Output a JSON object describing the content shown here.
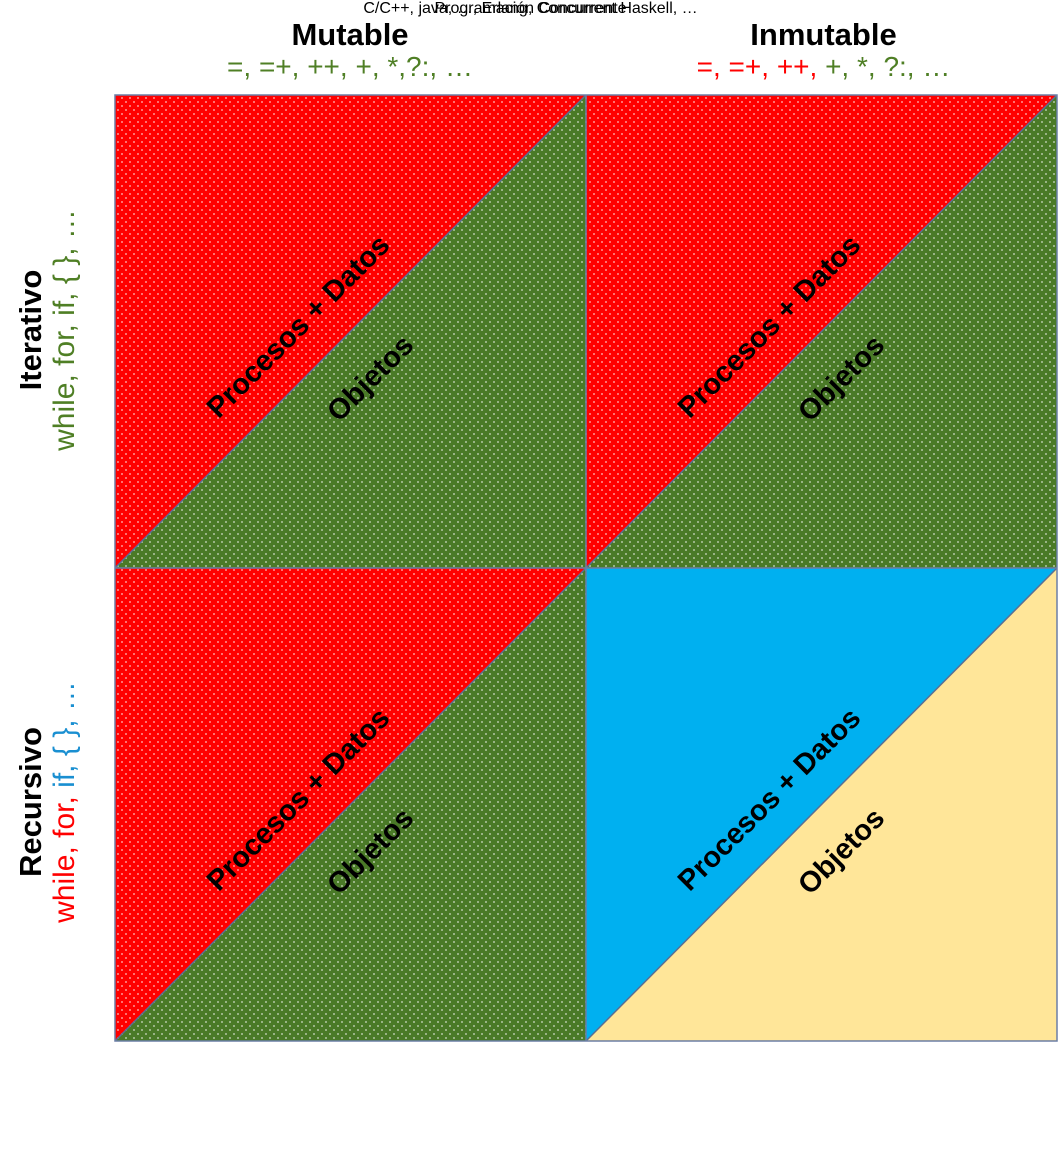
{
  "columns": [
    {
      "title": "Mutable",
      "ops": [
        {
          "text": "=, =+, ++, +, *,?:, …",
          "color": "green"
        }
      ]
    },
    {
      "title": "Inmutable",
      "ops": [
        {
          "text": "=, =+, ++, ",
          "color": "red"
        },
        {
          "text": "+, *, ?:, …",
          "color": "green"
        }
      ]
    }
  ],
  "rows": [
    {
      "title": "Iterativo",
      "ops": [
        {
          "text": "while, for, if, { }, …",
          "color": "green"
        }
      ]
    },
    {
      "title": "Recursivo",
      "ops": [
        {
          "text": "while, for, ",
          "color": "red"
        },
        {
          "text": "if, { }, …",
          "color": "blue"
        }
      ]
    }
  ],
  "quadrants": [
    {
      "upper_label": "Procesos + Datos",
      "lower_label": "Objetos",
      "upper_color": "#ff0000",
      "lower_color": "#4a7a27",
      "dotted": true
    },
    {
      "upper_label": "Procesos + Datos",
      "lower_label": "Objetos",
      "upper_color": "#ff0000",
      "lower_color": "#4a7a27",
      "dotted": true
    },
    {
      "upper_label": "Procesos + Datos",
      "lower_label": "Objetos",
      "upper_color": "#ff0000",
      "lower_color": "#4a7a27",
      "dotted": true
    },
    {
      "upper_label": "Procesos + Datos",
      "lower_label": "Objetos",
      "upper_color": "#00b0f0",
      "lower_color": "#ffe699",
      "dotted": false
    }
  ],
  "footer": {
    "title": "Programación Concurrente",
    "languages": "C/C++, java, …, Erlang, Concurrent Haskell, …"
  }
}
